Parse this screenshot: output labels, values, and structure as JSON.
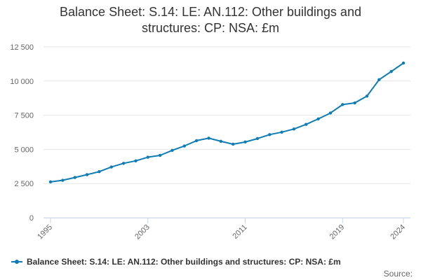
{
  "title_lines": [
    "Balance Sheet: S.14: LE: AN.112: Other buildings and",
    "structures: CP: NSA: £m"
  ],
  "source_label": "Source:",
  "colors": {
    "series": "#0f7cb4",
    "grid": "#e6e6e6",
    "axis": "#ccd6eb"
  },
  "chart_data": {
    "type": "line",
    "title": "Balance Sheet: S.14: LE: AN.112: Other buildings and structures: CP: NSA: £m",
    "x": [
      1995,
      1996,
      1997,
      1998,
      1999,
      2000,
      2001,
      2002,
      2003,
      2004,
      2005,
      2006,
      2007,
      2008,
      2009,
      2010,
      2011,
      2012,
      2013,
      2014,
      2015,
      2016,
      2017,
      2018,
      2019,
      2020,
      2021,
      2022,
      2023,
      2024
    ],
    "series": [
      {
        "name": "Balance Sheet: S.14: LE: AN.112: Other buildings and structures: CP: NSA: £m",
        "values": [
          2620,
          2740,
          2940,
          3150,
          3370,
          3710,
          3980,
          4160,
          4430,
          4560,
          4930,
          5250,
          5640,
          5820,
          5590,
          5380,
          5540,
          5790,
          6080,
          6260,
          6490,
          6830,
          7230,
          7660,
          8280,
          8400,
          8900,
          10100,
          10700,
          11320
        ]
      }
    ],
    "x_tick_labels": [
      "1995",
      "2003",
      "2011",
      "2019",
      "2024"
    ],
    "y_ticks": [
      0,
      2500,
      5000,
      7500,
      10000,
      12500
    ],
    "y_tick_labels": [
      "0",
      "2 500",
      "5 000",
      "7 500",
      "10 000",
      "12 500"
    ],
    "ylim": [
      0,
      12500
    ],
    "xlim": [
      1995,
      2024
    ],
    "grid": true,
    "legend_position": "bottom"
  }
}
